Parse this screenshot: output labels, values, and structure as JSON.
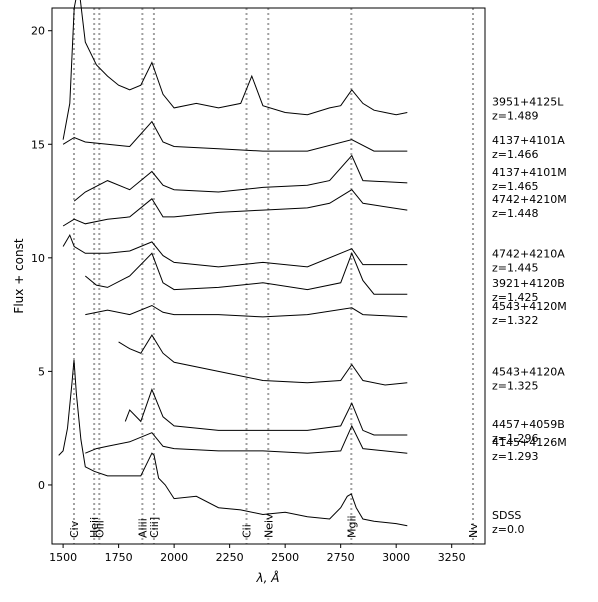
{
  "chart_data": {
    "type": "line",
    "xlabel": "λ, Å",
    "ylabel": "Flux + const",
    "xlim": [
      1450,
      3400
    ],
    "ylim": [
      -2.6,
      21
    ],
    "x_ticks": [
      1500,
      1750,
      2000,
      2250,
      2500,
      2750,
      3000,
      3250
    ],
    "y_ticks": [
      0,
      5,
      10,
      15,
      20
    ],
    "grid": false,
    "legend": "none",
    "line_color": "#000000",
    "line_features": [
      {
        "label": "Civ",
        "x": 1549
      },
      {
        "label": "Heii",
        "x": 1640
      },
      {
        "label": "Oiii",
        "x": 1663
      },
      {
        "label": "Aliii",
        "x": 1857
      },
      {
        "label": "Ciii]",
        "x": 1909
      },
      {
        "label": "Cii",
        "x": 2326
      },
      {
        "label": "Neiv",
        "x": 2424
      },
      {
        "label": "Mgii",
        "x": 2798
      },
      {
        "label": "Nv",
        "x": 3346
      }
    ],
    "series": [
      {
        "name": "3951+4125L",
        "z": "z=1.489",
        "x": [
          1500,
          1530,
          1550,
          1570,
          1600,
          1650,
          1700,
          1750,
          1800,
          1850,
          1900,
          1950,
          2000,
          2100,
          2200,
          2300,
          2350,
          2400,
          2500,
          2600,
          2700,
          2750,
          2800,
          2850,
          2900,
          2950,
          3000,
          3050
        ],
        "y": [
          15.2,
          16.8,
          21,
          22,
          19.5,
          18.5,
          18,
          17.6,
          17.4,
          17.6,
          18.6,
          17.2,
          16.6,
          16.8,
          16.6,
          16.8,
          18,
          16.7,
          16.4,
          16.3,
          16.6,
          16.7,
          17.4,
          16.8,
          16.5,
          16.4,
          16.3,
          16.4
        ]
      },
      {
        "name": "4137+4101A",
        "z": "z=1.466",
        "x": [
          1500,
          1550,
          1600,
          1700,
          1800,
          1900,
          1950,
          2000,
          2200,
          2400,
          2600,
          2800,
          2900,
          3050
        ],
        "y": [
          15.0,
          15.3,
          15.1,
          15.0,
          14.9,
          16.0,
          15.1,
          14.9,
          14.8,
          14.7,
          14.7,
          15.2,
          14.7,
          14.7
        ]
      },
      {
        "name": "4137+4101M",
        "z": "z=1.465",
        "x": [
          1550,
          1600,
          1700,
          1800,
          1900,
          1950,
          2000,
          2200,
          2400,
          2600,
          2700,
          2800,
          2850,
          3050
        ],
        "y": [
          12.5,
          12.9,
          13.4,
          13.0,
          13.8,
          13.2,
          13.0,
          12.9,
          13.1,
          13.2,
          13.4,
          14.5,
          13.4,
          13.3
        ]
      },
      {
        "name": "4742+4210M",
        "z": "z=1.448",
        "x": [
          1500,
          1550,
          1600,
          1700,
          1800,
          1900,
          1950,
          2000,
          2200,
          2400,
          2600,
          2700,
          2800,
          2850,
          3050
        ],
        "y": [
          11.4,
          11.7,
          11.5,
          11.7,
          11.8,
          12.6,
          11.8,
          11.8,
          12.0,
          12.1,
          12.2,
          12.4,
          13.0,
          12.4,
          12.1
        ]
      },
      {
        "name": "4742+4210A",
        "z": "z=1.445",
        "x": [
          1500,
          1530,
          1550,
          1600,
          1700,
          1800,
          1900,
          1950,
          2000,
          2200,
          2400,
          2600,
          2800,
          2850,
          3050
        ],
        "y": [
          10.5,
          11.0,
          10.5,
          10.2,
          10.2,
          10.3,
          10.7,
          10.1,
          9.8,
          9.6,
          9.8,
          9.6,
          10.4,
          9.7,
          9.7
        ]
      },
      {
        "name": "3921+4120B",
        "z": "z=1.425",
        "x": [
          1600,
          1650,
          1700,
          1800,
          1900,
          1950,
          2000,
          2200,
          2400,
          2600,
          2750,
          2800,
          2850,
          2900,
          3050
        ],
        "y": [
          9.2,
          8.8,
          8.7,
          9.2,
          10.2,
          8.9,
          8.6,
          8.7,
          8.9,
          8.6,
          8.9,
          10.2,
          9.0,
          8.4,
          8.4
        ]
      },
      {
        "name": "4543+4120M",
        "z": "z=1.322",
        "x": [
          1600,
          1700,
          1800,
          1900,
          1950,
          2000,
          2200,
          2400,
          2600,
          2800,
          2850,
          3050
        ],
        "y": [
          7.5,
          7.7,
          7.5,
          7.9,
          7.6,
          7.5,
          7.5,
          7.4,
          7.5,
          7.8,
          7.5,
          7.4
        ]
      },
      {
        "name": "4543+4120A",
        "z": "z=1.325",
        "x": [
          1750,
          1800,
          1850,
          1900,
          1950,
          2000,
          2200,
          2400,
          2600,
          2750,
          2800,
          2850,
          2950,
          3050
        ],
        "y": [
          6.3,
          6.0,
          5.8,
          6.6,
          5.8,
          5.4,
          5.0,
          4.6,
          4.5,
          4.6,
          5.3,
          4.6,
          4.4,
          4.5
        ]
      },
      {
        "name": "4457+4059B",
        "z": "z=1.296",
        "x": [
          1780,
          1800,
          1850,
          1900,
          1950,
          2000,
          2200,
          2400,
          2600,
          2750,
          2800,
          2850,
          2900,
          3050
        ],
        "y": [
          2.8,
          3.3,
          2.8,
          4.2,
          3.0,
          2.6,
          2.4,
          2.4,
          2.4,
          2.6,
          3.6,
          2.4,
          2.2,
          2.2
        ]
      },
      {
        "name": "4145+4126M",
        "z": "z=1.293",
        "x": [
          1600,
          1650,
          1700,
          1800,
          1900,
          1950,
          2000,
          2200,
          2400,
          2600,
          2750,
          2800,
          2850,
          3050
        ],
        "y": [
          1.4,
          1.6,
          1.7,
          1.9,
          2.3,
          1.7,
          1.6,
          1.5,
          1.5,
          1.4,
          1.5,
          2.6,
          1.6,
          1.4
        ]
      },
      {
        "name": "SDSS",
        "z": "z=0.0",
        "x": [
          1480,
          1500,
          1520,
          1540,
          1549,
          1560,
          1580,
          1600,
          1640,
          1700,
          1800,
          1850,
          1880,
          1900,
          1910,
          1930,
          1960,
          2000,
          2100,
          2200,
          2300,
          2400,
          2500,
          2600,
          2700,
          2750,
          2780,
          2798,
          2820,
          2850,
          2900,
          3000,
          3050
        ],
        "y": [
          1.3,
          1.5,
          2.5,
          4.5,
          5.5,
          4.0,
          2.0,
          0.8,
          0.6,
          0.4,
          0.4,
          0.4,
          1.0,
          1.4,
          1.3,
          0.3,
          0.0,
          -0.6,
          -0.5,
          -1.0,
          -1.1,
          -1.3,
          -1.2,
          -1.4,
          -1.5,
          -1.0,
          -0.5,
          -0.4,
          -1.0,
          -1.5,
          -1.6,
          -1.7,
          -1.8
        ]
      }
    ]
  }
}
